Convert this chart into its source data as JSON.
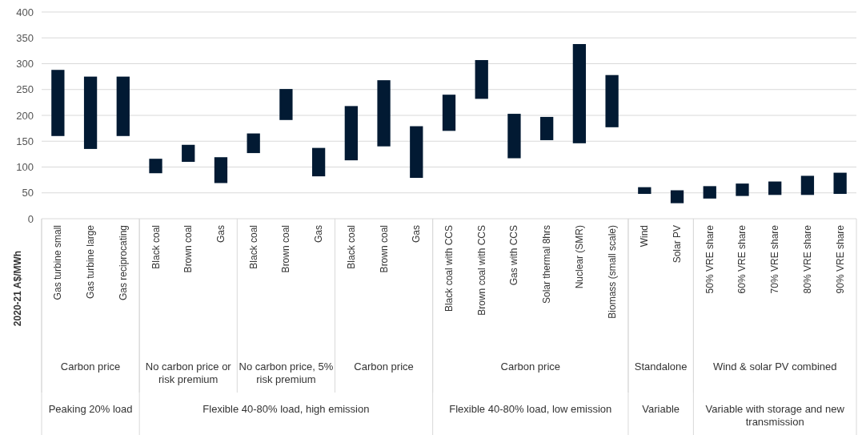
{
  "chart_data": {
    "type": "bar",
    "ylabel": "2020-21 A$/MWh",
    "categories": [
      "Gas turbine small",
      "Gas turbine large",
      "Gas reciprocating",
      "Black coal",
      "Brown coal",
      "Gas",
      "Black coal",
      "Brown coal",
      "Gas",
      "Black coal",
      "Brown coal",
      "Gas",
      "Black coal with CCS",
      "Brown coal with CCS",
      "Gas with CCS",
      "Solar thermal 8hrs",
      "Nuclear (SMR)",
      "Biomass (small scale)",
      "Wind",
      "Solar PV",
      "50% VRE share",
      "60% VRE share",
      "70% VRE share",
      "80% VRE share",
      "90% VRE share"
    ],
    "base": [
      160,
      135,
      160,
      88,
      110,
      69,
      127,
      191,
      82,
      113,
      140,
      79,
      170,
      232,
      117,
      152,
      146,
      177,
      48,
      30,
      39,
      44,
      46,
      46,
      48
    ],
    "values": [
      128,
      140,
      115,
      28,
      33,
      50,
      38,
      60,
      55,
      105,
      128,
      100,
      70,
      75,
      86,
      45,
      192,
      101,
      13,
      25,
      24,
      24,
      26,
      37,
      41
    ],
    "color": "#021a33",
    "ylim": [
      0,
      400
    ],
    "yticks": [
      0,
      50,
      100,
      150,
      200,
      250,
      300,
      350,
      400
    ],
    "grid": "y",
    "annotations": [
      "Carbon price",
      "No carbon price or risk premium",
      "No carbon price, 5% risk premium",
      "Carbon price",
      "Carbon price",
      "Standalone",
      "Wind & solar PV combined",
      "Peaking 20% load",
      "Flexible 40-80% load, high emission",
      "Flexible 40-80% load, low emission",
      "Variable",
      "Variable with storage and new transmission"
    ]
  }
}
